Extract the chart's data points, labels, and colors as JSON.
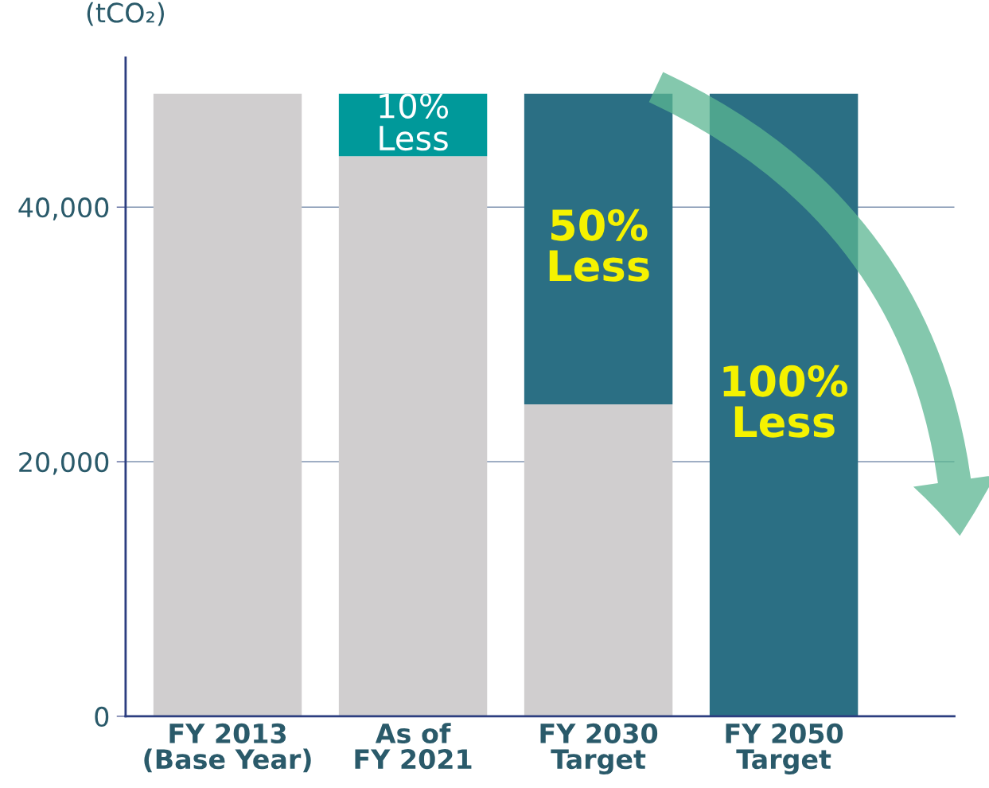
{
  "chart_data": {
    "type": "bar",
    "ylabel": "(tCO₂)",
    "categories": [
      "FY 2013\n(Base Year)",
      "As of\nFY 2021",
      "FY 2030\nTarget",
      "FY 2050\nTarget"
    ],
    "stacked": true,
    "series": [
      {
        "color": "#d0cecf",
        "values": [
          48900,
          44000,
          24500,
          0
        ]
      },
      {
        "colors": [
          "#d0cecf",
          "#00999a",
          "#2b6f84",
          "#2b6f84"
        ],
        "values": [
          0,
          4900,
          24400,
          48900
        ]
      }
    ],
    "annotations": [
      "10%\nLess",
      "50%\nLess",
      "100%\nLess"
    ],
    "ylim": [
      0,
      51750
    ],
    "yticks": [
      0,
      {
        "value": 20000,
        "label": "20,000"
      },
      {
        "value": 40000,
        "label": "40,000"
      }
    ],
    "grid": "y"
  }
}
